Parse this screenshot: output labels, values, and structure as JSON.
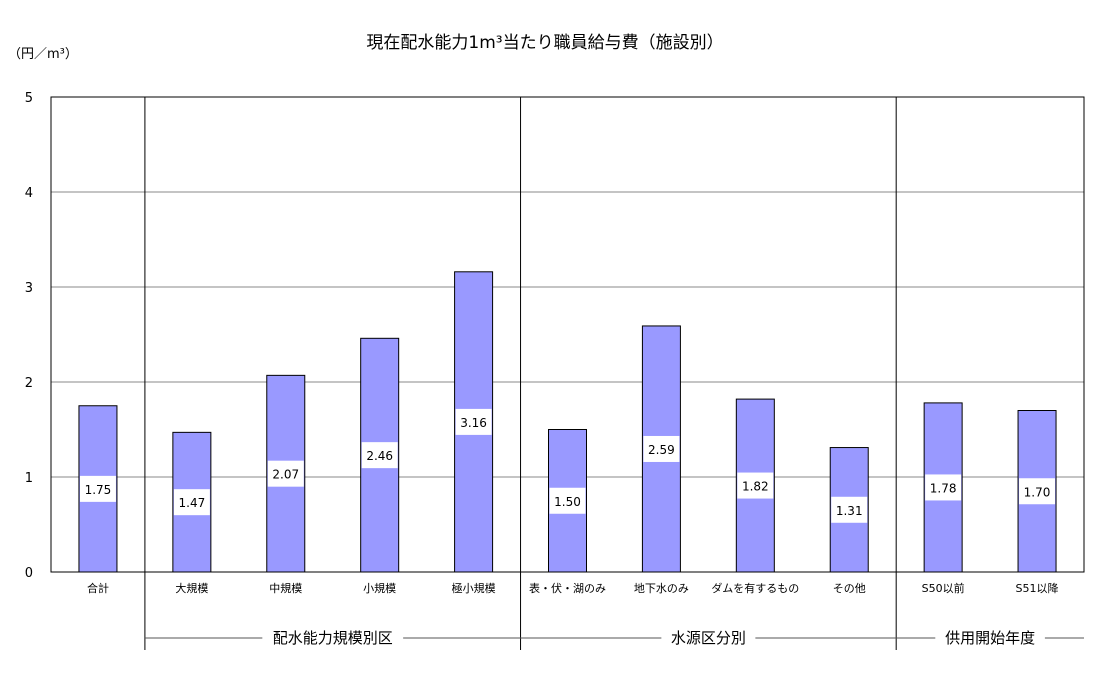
{
  "chart_data": {
    "type": "bar",
    "title": "現在配水能力1m³当たり職員給与費（施設別）",
    "ylabel": "（円／m³）",
    "ylim": [
      0,
      5
    ],
    "yticks": [
      0,
      1,
      2,
      3,
      4,
      5
    ],
    "grid": true,
    "bar_color": "#9999ff",
    "categories": [
      "合計",
      "大規模",
      "中規模",
      "小規模",
      "極小規模",
      "表・伏・湖のみ",
      "地下水のみ",
      "ダムを有するもの",
      "その他",
      "S50以前",
      "S51以降"
    ],
    "values": [
      1.75,
      1.47,
      2.07,
      2.46,
      3.16,
      1.5,
      2.59,
      1.82,
      1.31,
      1.78,
      1.7
    ],
    "value_labels": [
      "1.75",
      "1.47",
      "2.07",
      "2.46",
      "3.16",
      "1.50",
      "2.59",
      "1.82",
      "1.31",
      "1.78",
      "1.70"
    ],
    "groups": [
      {
        "label": "配水能力規模別区",
        "start": 1,
        "end": 4
      },
      {
        "label": "水源区分別",
        "start": 5,
        "end": 8
      },
      {
        "label": "供用開始年度",
        "start": 9,
        "end": 10
      }
    ]
  }
}
